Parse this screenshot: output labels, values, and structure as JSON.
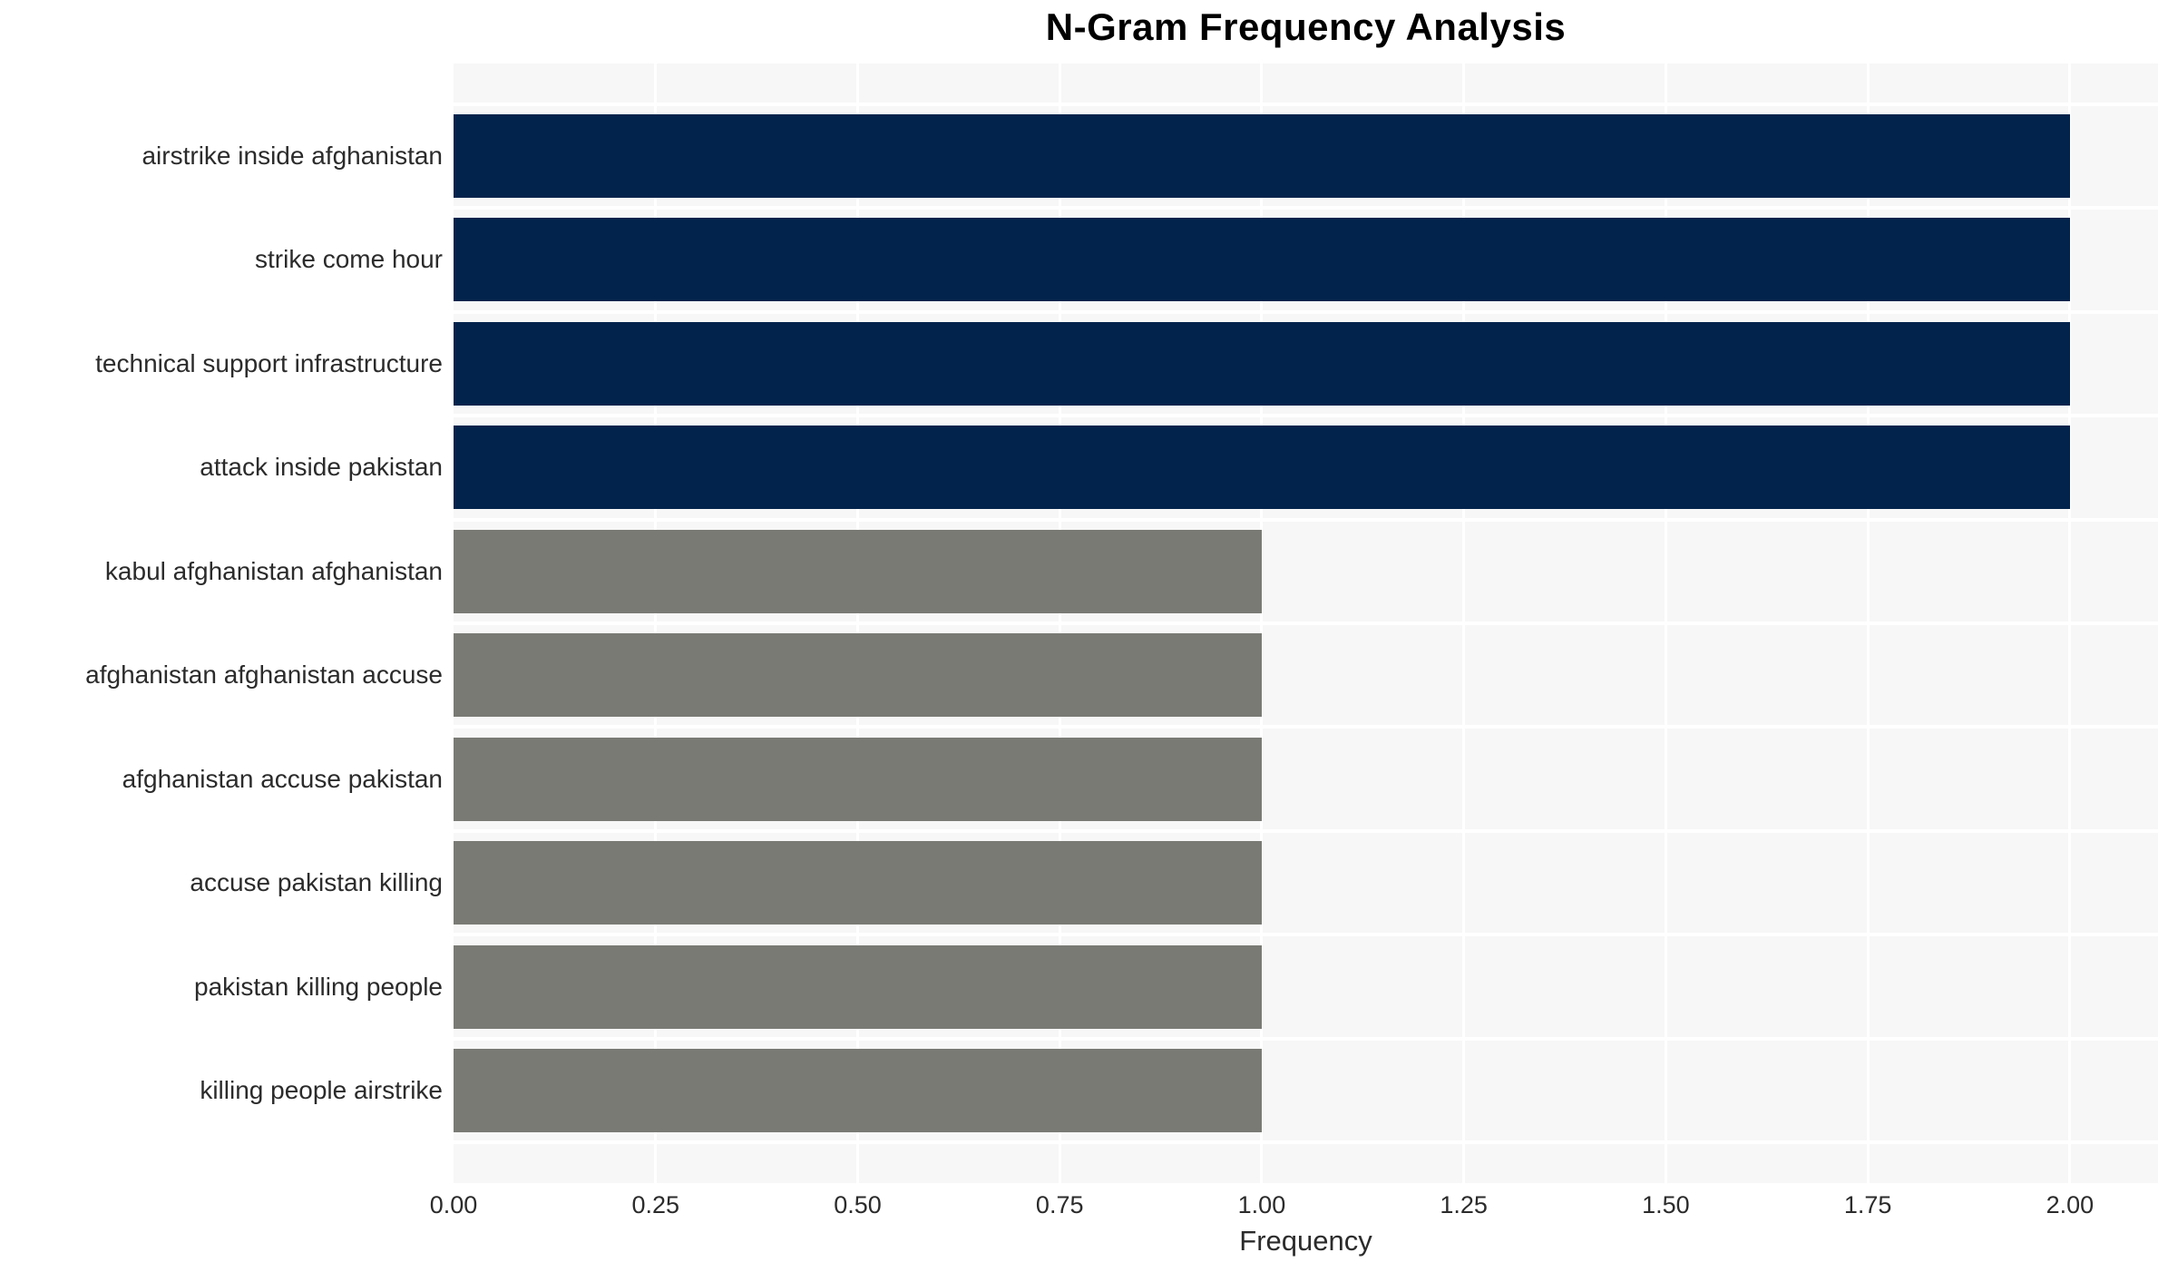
{
  "chart_data": {
    "type": "bar",
    "orientation": "horizontal",
    "title": "N-Gram Frequency Analysis",
    "xlabel": "Frequency",
    "ylabel": "",
    "categories": [
      "airstrike inside afghanistan",
      "strike come hour",
      "technical support infrastructure",
      "attack inside pakistan",
      "kabul afghanistan afghanistan",
      "afghanistan afghanistan accuse",
      "afghanistan accuse pakistan",
      "accuse pakistan killing",
      "pakistan killing people",
      "killing people airstrike"
    ],
    "values": [
      2,
      2,
      2,
      2,
      1,
      1,
      1,
      1,
      1,
      1
    ],
    "bar_colors": [
      "#02234c",
      "#02234c",
      "#02234c",
      "#02234c",
      "#7a7a75",
      "#7a7a75",
      "#7a7a75",
      "#7a7a75",
      "#7a7a75",
      "#7a7a75"
    ],
    "x_tick_labels": [
      "0.00",
      "0.25",
      "0.50",
      "0.75",
      "1.00",
      "1.25",
      "1.50",
      "1.75",
      "2.00"
    ],
    "xlim": [
      0,
      2.109
    ],
    "grid": "on",
    "legend": "none"
  },
  "style": {
    "plot_bg_color": "#f7f7f7",
    "grid_color": "#ffffff",
    "bar_color_high": "#02234c",
    "bar_color_low": "#7a7a75",
    "text_color": "#2b2b2b",
    "title_color": "#000000"
  }
}
